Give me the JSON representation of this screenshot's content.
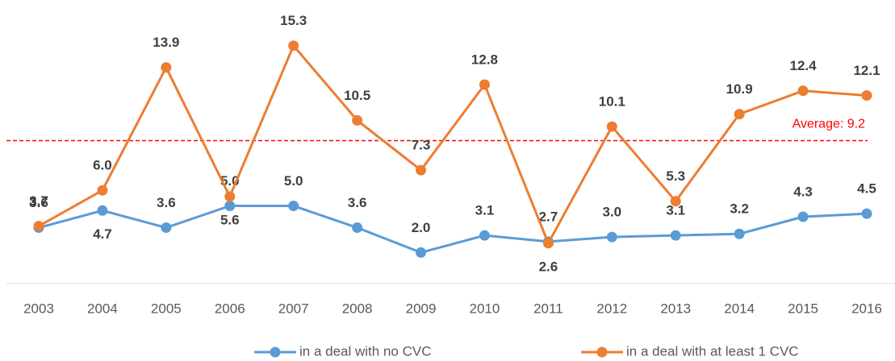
{
  "chart_data": {
    "type": "line",
    "categories": [
      "2003",
      "2004",
      "2005",
      "2006",
      "2007",
      "2008",
      "2009",
      "2010",
      "2011",
      "2012",
      "2013",
      "2014",
      "2015",
      "2016"
    ],
    "series": [
      {
        "name": "in a deal with no CVC",
        "color": "#5b9bd5",
        "values": [
          3.6,
          4.7,
          3.6,
          5.0,
          5.0,
          3.6,
          2.0,
          3.1,
          2.7,
          3.0,
          3.1,
          3.2,
          4.3,
          4.5
        ],
        "value_labels": [
          "3.6",
          "4.7",
          "3.6",
          "5.0",
          "5.0",
          "3.6",
          "2.0",
          "3.1",
          "2.7",
          "3.0",
          "3.1",
          "3.2",
          "4.3",
          "4.5"
        ]
      },
      {
        "name": "in a deal with at least 1 CVC",
        "color": "#ed7d31",
        "values": [
          3.7,
          6.0,
          13.9,
          5.6,
          15.3,
          10.5,
          7.3,
          12.8,
          2.6,
          10.1,
          5.3,
          10.9,
          12.4,
          12.1
        ],
        "value_labels": [
          "3.7",
          "6.0",
          "13.9",
          "5.6",
          "15.3",
          "10.5",
          "7.3",
          "12.8",
          "2.6",
          "10.1",
          "5.3",
          "10.9",
          "12.4",
          "12.1"
        ]
      }
    ],
    "average": {
      "value": 9.2,
      "label": "Average: 9.2",
      "color": "#ff0000"
    },
    "ylim": [
      0,
      18
    ]
  }
}
